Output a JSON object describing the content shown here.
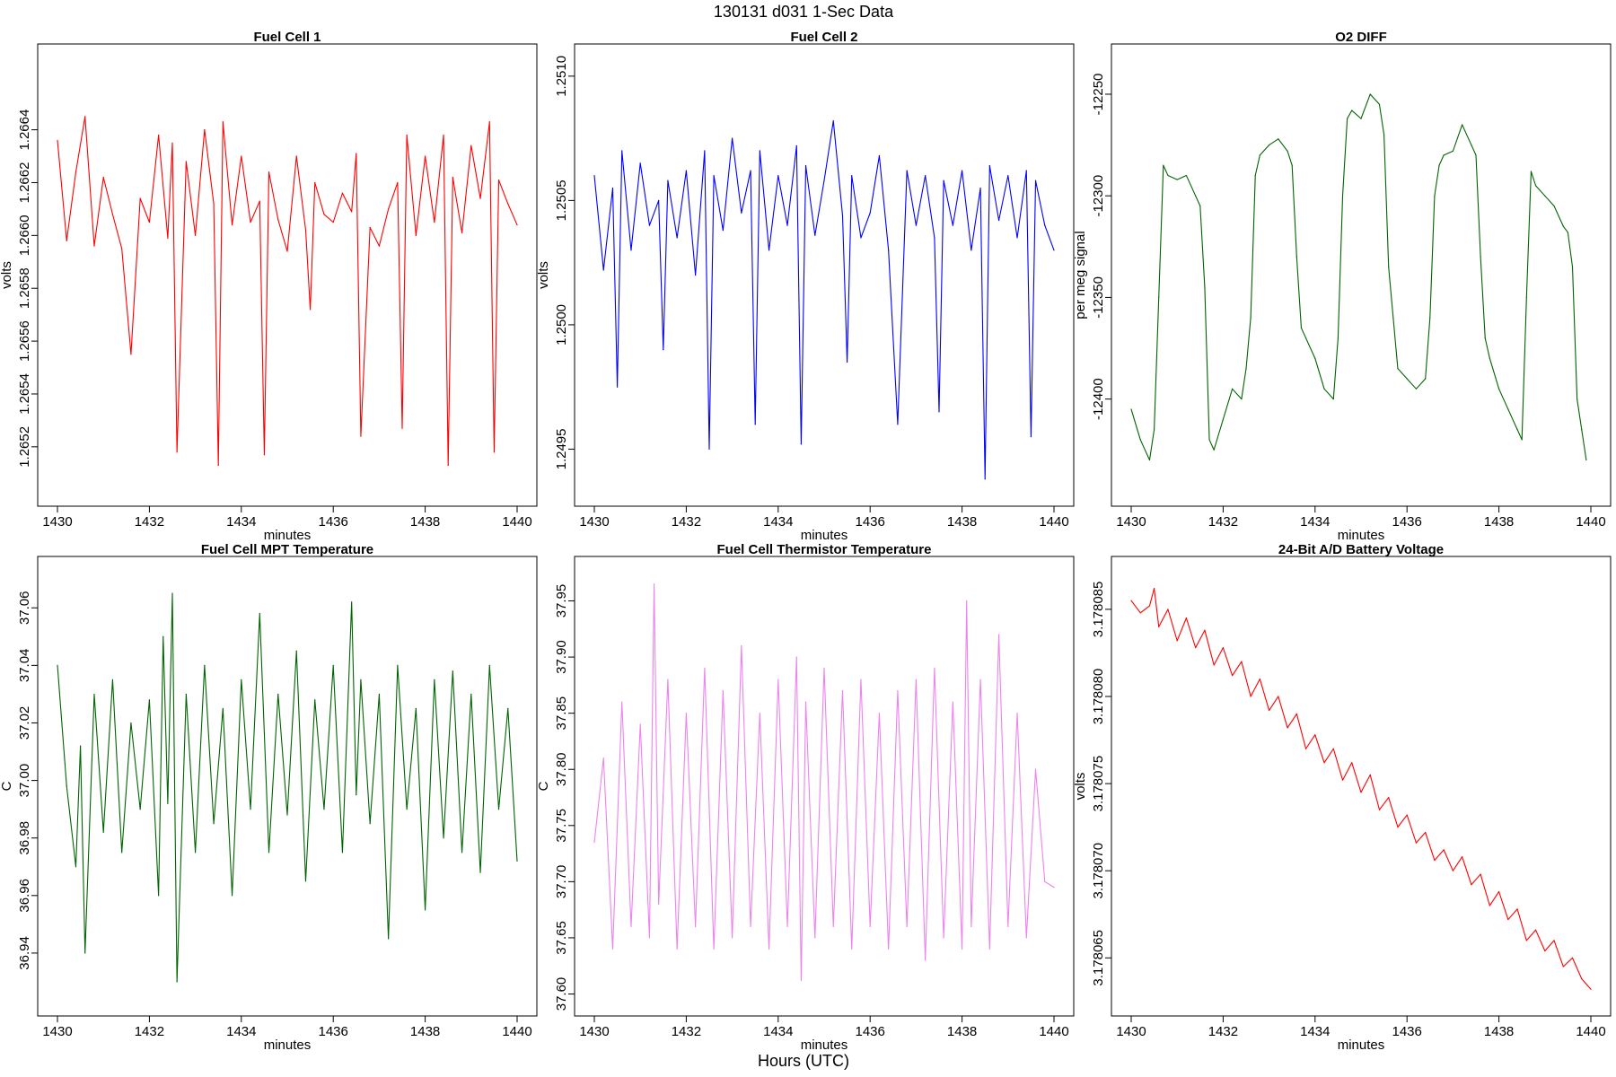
{
  "figure": {
    "suptitle": "130131   d031   1-Sec Data",
    "xlabel_common": "Hours (UTC)"
  },
  "chart_data": [
    {
      "type": "line",
      "title": "Fuel Cell 1",
      "xlabel": "minutes",
      "ylabel": "volts",
      "color": "#ff0000",
      "xlim": [
        1430,
        1440
      ],
      "ylim": [
        1.26505,
        1.26665
      ],
      "xticks": [
        1430,
        1432,
        1434,
        1436,
        1438,
        1440
      ],
      "xtick_labels": [
        "1430",
        "1432",
        "1434",
        "1436",
        "1438",
        "1440"
      ],
      "yticks": [
        1.2652,
        1.2654,
        1.2656,
        1.2658,
        1.266,
        1.2662,
        1.2664
      ],
      "ytick_labels": [
        "1.2652",
        "1.2654",
        "1.2656",
        "1.2658",
        "1.2660",
        "1.2662",
        "1.2664"
      ],
      "series": [
        {
          "x": [
            1430.0,
            1430.2,
            1430.4,
            1430.6,
            1430.8,
            1431.0,
            1431.2,
            1431.4,
            1431.6,
            1431.8,
            1432.0,
            1432.2,
            1432.4,
            1432.5,
            1432.6,
            1432.8,
            1433.0,
            1433.2,
            1433.4,
            1433.5,
            1433.6,
            1433.8,
            1434.0,
            1434.2,
            1434.4,
            1434.5,
            1434.6,
            1434.8,
            1435.0,
            1435.2,
            1435.4,
            1435.5,
            1435.6,
            1435.8,
            1436.0,
            1436.2,
            1436.4,
            1436.5,
            1436.6,
            1436.8,
            1437.0,
            1437.2,
            1437.4,
            1437.5,
            1437.6,
            1437.8,
            1438.0,
            1438.2,
            1438.4,
            1438.5,
            1438.6,
            1438.8,
            1439.0,
            1439.2,
            1439.4,
            1439.5,
            1439.6,
            1439.8,
            1440.0
          ],
          "y": [
            1.26636,
            1.26598,
            1.26624,
            1.26645,
            1.26596,
            1.26622,
            1.26608,
            1.26595,
            1.26555,
            1.26614,
            1.26605,
            1.26638,
            1.26599,
            1.26635,
            1.26518,
            1.26628,
            1.266,
            1.2664,
            1.26612,
            1.26513,
            1.26643,
            1.26604,
            1.2663,
            1.26605,
            1.26613,
            1.26517,
            1.26624,
            1.26606,
            1.26594,
            1.2663,
            1.26602,
            1.26572,
            1.2662,
            1.26608,
            1.26605,
            1.26616,
            1.26609,
            1.26631,
            1.26524,
            1.26603,
            1.26596,
            1.2661,
            1.2662,
            1.26527,
            1.26638,
            1.266,
            1.2663,
            1.26605,
            1.26638,
            1.26513,
            1.26622,
            1.26601,
            1.26634,
            1.26614,
            1.26643,
            1.26518,
            1.26621,
            1.26612,
            1.26604
          ]
        }
      ]
    },
    {
      "type": "line",
      "title": "Fuel Cell 2",
      "xlabel": "minutes",
      "ylabel": "volts",
      "color": "#0000ff",
      "xlim": [
        1430,
        1440
      ],
      "ylim": [
        1.24935,
        1.25105
      ],
      "xticks": [
        1430,
        1432,
        1434,
        1436,
        1438,
        1440
      ],
      "xtick_labels": [
        "1430",
        "1432",
        "1434",
        "1436",
        "1438",
        "1440"
      ],
      "yticks": [
        1.2495,
        1.25,
        1.2505,
        1.251
      ],
      "ytick_labels": [
        "1.2495",
        "1.2500",
        "1.2505",
        "1.2510"
      ],
      "series": [
        {
          "x": [
            1430.0,
            1430.2,
            1430.4,
            1430.5,
            1430.6,
            1430.8,
            1431.0,
            1431.2,
            1431.4,
            1431.5,
            1431.6,
            1431.8,
            1432.0,
            1432.2,
            1432.4,
            1432.5,
            1432.6,
            1432.8,
            1433.0,
            1433.2,
            1433.4,
            1433.5,
            1433.6,
            1433.8,
            1434.0,
            1434.2,
            1434.4,
            1434.5,
            1434.6,
            1434.8,
            1435.0,
            1435.2,
            1435.4,
            1435.5,
            1435.6,
            1435.8,
            1436.0,
            1436.2,
            1436.4,
            1436.6,
            1436.8,
            1437.0,
            1437.2,
            1437.4,
            1437.5,
            1437.6,
            1437.8,
            1438.0,
            1438.2,
            1438.4,
            1438.5,
            1438.6,
            1438.8,
            1439.0,
            1439.2,
            1439.4,
            1439.5,
            1439.6,
            1439.8,
            1440.0
          ],
          "y": [
            1.2506,
            1.25022,
            1.25055,
            1.24975,
            1.2507,
            1.2503,
            1.25065,
            1.2504,
            1.2505,
            1.2499,
            1.25058,
            1.25035,
            1.25062,
            1.2502,
            1.2507,
            1.2495,
            1.2506,
            1.25038,
            1.25075,
            1.25045,
            1.25062,
            1.2496,
            1.2507,
            1.2503,
            1.2506,
            1.2504,
            1.25072,
            1.24952,
            1.25064,
            1.25036,
            1.25058,
            1.25082,
            1.25044,
            1.24985,
            1.2506,
            1.25035,
            1.25045,
            1.25068,
            1.2503,
            1.2496,
            1.25062,
            1.2504,
            1.2506,
            1.25035,
            1.24965,
            1.25058,
            1.2504,
            1.25062,
            1.2503,
            1.25055,
            1.24938,
            1.25064,
            1.25042,
            1.2506,
            1.25035,
            1.25062,
            1.24955,
            1.25058,
            1.2504,
            1.2503
          ]
        }
      ]
    },
    {
      "type": "line",
      "title": "O2 DIFF",
      "xlabel": "minutes",
      "ylabel": "per meg signal",
      "color": "#006400",
      "xlim": [
        1430,
        1440
      ],
      "ylim": [
        -12443,
        -12235
      ],
      "xticks": [
        1430,
        1432,
        1434,
        1436,
        1438,
        1440
      ],
      "xtick_labels": [
        "1430",
        "1432",
        "1434",
        "1436",
        "1438",
        "1440"
      ],
      "yticks": [
        -12400,
        -12350,
        -12300,
        -12250
      ],
      "ytick_labels": [
        "-12400",
        "-12350",
        "-12300",
        "-12250"
      ],
      "series": [
        {
          "x": [
            1430.0,
            1430.2,
            1430.4,
            1430.5,
            1430.6,
            1430.7,
            1430.8,
            1431.0,
            1431.2,
            1431.4,
            1431.5,
            1431.6,
            1431.7,
            1431.8,
            1432.0,
            1432.2,
            1432.4,
            1432.5,
            1432.6,
            1432.7,
            1432.8,
            1433.0,
            1433.2,
            1433.4,
            1433.5,
            1433.6,
            1433.7,
            1433.8,
            1434.0,
            1434.2,
            1434.4,
            1434.5,
            1434.6,
            1434.7,
            1434.8,
            1435.0,
            1435.2,
            1435.4,
            1435.5,
            1435.6,
            1435.7,
            1435.8,
            1436.0,
            1436.2,
            1436.4,
            1436.5,
            1436.6,
            1436.7,
            1436.8,
            1437.0,
            1437.2,
            1437.4,
            1437.5,
            1437.6,
            1437.7,
            1437.8,
            1438.0,
            1438.2,
            1438.4,
            1438.5,
            1438.6,
            1438.7,
            1438.8,
            1439.0,
            1439.2,
            1439.4,
            1439.5,
            1439.6,
            1439.7,
            1439.8,
            1439.9
          ],
          "y": [
            -12405,
            -12420,
            -12430,
            -12415,
            -12350,
            -12285,
            -12290,
            -12292,
            -12290,
            -12300,
            -12305,
            -12345,
            -12420,
            -12425,
            -12410,
            -12395,
            -12400,
            -12385,
            -12360,
            -12290,
            -12280,
            -12275,
            -12272,
            -12278,
            -12285,
            -12330,
            -12365,
            -12370,
            -12380,
            -12395,
            -12400,
            -12370,
            -12300,
            -12262,
            -12258,
            -12262,
            -12250,
            -12255,
            -12270,
            -12335,
            -12360,
            -12385,
            -12390,
            -12395,
            -12390,
            -12360,
            -12300,
            -12285,
            -12280,
            -12278,
            -12265,
            -12275,
            -12280,
            -12330,
            -12370,
            -12380,
            -12395,
            -12405,
            -12415,
            -12420,
            -12350,
            -12288,
            -12295,
            -12300,
            -12305,
            -12315,
            -12318,
            -12335,
            -12400,
            -12415,
            -12430
          ]
        }
      ]
    },
    {
      "type": "line",
      "title": "Fuel Cell MPT Temperature",
      "xlabel": "minutes",
      "ylabel": "C",
      "color": "#006400",
      "xlim": [
        1430,
        1440
      ],
      "ylim": [
        36.925,
        37.071
      ],
      "xticks": [
        1430,
        1432,
        1434,
        1436,
        1438,
        1440
      ],
      "xtick_labels": [
        "1430",
        "1432",
        "1434",
        "1436",
        "1438",
        "1440"
      ],
      "yticks": [
        36.94,
        36.96,
        36.98,
        37.0,
        37.02,
        37.04,
        37.06
      ],
      "ytick_labels": [
        "36.94",
        "36.96",
        "36.98",
        "37.00",
        "37.02",
        "37.04",
        "37.06"
      ],
      "series": [
        {
          "x": [
            1430.0,
            1430.2,
            1430.4,
            1430.5,
            1430.6,
            1430.8,
            1431.0,
            1431.2,
            1431.4,
            1431.6,
            1431.8,
            1432.0,
            1432.2,
            1432.3,
            1432.4,
            1432.5,
            1432.6,
            1432.8,
            1433.0,
            1433.2,
            1433.4,
            1433.6,
            1433.8,
            1434.0,
            1434.2,
            1434.4,
            1434.6,
            1434.8,
            1435.0,
            1435.2,
            1435.4,
            1435.6,
            1435.8,
            1436.0,
            1436.2,
            1436.4,
            1436.5,
            1436.6,
            1436.8,
            1437.0,
            1437.2,
            1437.4,
            1437.6,
            1437.8,
            1438.0,
            1438.2,
            1438.4,
            1438.6,
            1438.8,
            1439.0,
            1439.2,
            1439.4,
            1439.6,
            1439.8,
            1440.0
          ],
          "y": [
            37.04,
            36.998,
            36.97,
            37.012,
            36.94,
            37.03,
            36.982,
            37.035,
            36.975,
            37.02,
            36.99,
            37.028,
            36.96,
            37.05,
            36.992,
            37.065,
            36.93,
            37.03,
            36.975,
            37.04,
            36.985,
            37.025,
            36.96,
            37.035,
            36.99,
            37.058,
            36.975,
            37.03,
            36.988,
            37.045,
            36.965,
            37.028,
            36.99,
            37.04,
            36.975,
            37.062,
            36.995,
            37.035,
            36.985,
            37.03,
            36.945,
            37.04,
            36.99,
            37.025,
            36.955,
            37.035,
            36.98,
            37.038,
            36.975,
            37.03,
            36.968,
            37.04,
            36.99,
            37.025,
            36.972
          ]
        }
      ]
    },
    {
      "type": "line",
      "title": "Fuel Cell Thermistor Temperature",
      "xlabel": "minutes",
      "ylabel": "C",
      "color": "#ee82ee",
      "xlim": [
        1430,
        1440
      ],
      "ylim": [
        37.598,
        37.972
      ],
      "xticks": [
        1430,
        1432,
        1434,
        1436,
        1438,
        1440
      ],
      "xtick_labels": [
        "1430",
        "1432",
        "1434",
        "1436",
        "1438",
        "1440"
      ],
      "yticks": [
        37.6,
        37.65,
        37.7,
        37.75,
        37.8,
        37.85,
        37.9,
        37.95
      ],
      "ytick_labels": [
        "37.60",
        "37.65",
        "37.70",
        "37.75",
        "37.80",
        "37.85",
        "37.90",
        "37.95"
      ],
      "series": [
        {
          "x": [
            1430.0,
            1430.2,
            1430.4,
            1430.6,
            1430.8,
            1431.0,
            1431.2,
            1431.3,
            1431.4,
            1431.6,
            1431.8,
            1432.0,
            1432.2,
            1432.4,
            1432.6,
            1432.8,
            1433.0,
            1433.2,
            1433.4,
            1433.6,
            1433.8,
            1434.0,
            1434.2,
            1434.4,
            1434.5,
            1434.6,
            1434.8,
            1435.0,
            1435.2,
            1435.4,
            1435.6,
            1435.8,
            1436.0,
            1436.2,
            1436.4,
            1436.6,
            1436.8,
            1437.0,
            1437.2,
            1437.4,
            1437.6,
            1437.8,
            1438.0,
            1438.1,
            1438.2,
            1438.4,
            1438.6,
            1438.8,
            1439.0,
            1439.2,
            1439.4,
            1439.6,
            1439.8,
            1440.0
          ],
          "y": [
            37.735,
            37.81,
            37.64,
            37.86,
            37.66,
            37.84,
            37.65,
            37.965,
            37.68,
            37.88,
            37.64,
            37.85,
            37.66,
            37.89,
            37.64,
            37.87,
            37.65,
            37.91,
            37.66,
            37.85,
            37.64,
            37.88,
            37.66,
            37.9,
            37.612,
            37.86,
            37.65,
            37.89,
            37.66,
            37.87,
            37.64,
            37.88,
            37.66,
            37.85,
            37.64,
            37.87,
            37.66,
            37.88,
            37.63,
            37.89,
            37.65,
            37.86,
            37.64,
            37.95,
            37.66,
            37.88,
            37.64,
            37.92,
            37.66,
            37.85,
            37.65,
            37.8,
            37.7,
            37.695
          ]
        }
      ]
    },
    {
      "type": "line",
      "title": "24-Bit A/D Battery Voltage",
      "xlabel": "minutes",
      "ylabel": "volts",
      "color": "#ff0000",
      "xlim": [
        1430,
        1440
      ],
      "ylim": [
        3.1780628,
        3.1780869
      ],
      "xticks": [
        1430,
        1432,
        1434,
        1436,
        1438,
        1440
      ],
      "xtick_labels": [
        "1430",
        "1432",
        "1434",
        "1436",
        "1438",
        "1440"
      ],
      "yticks": [
        3.178065,
        3.17807,
        3.178075,
        3.17808,
        3.178085
      ],
      "ytick_labels": [
        "3.178065",
        "3.178070",
        "3.178075",
        "3.178080",
        "3.178085"
      ],
      "series": [
        {
          "x": [
            1430.0,
            1430.2,
            1430.4,
            1430.5,
            1430.6,
            1430.8,
            1431.0,
            1431.2,
            1431.4,
            1431.6,
            1431.8,
            1432.0,
            1432.2,
            1432.4,
            1432.6,
            1432.8,
            1433.0,
            1433.2,
            1433.4,
            1433.6,
            1433.8,
            1434.0,
            1434.2,
            1434.4,
            1434.6,
            1434.8,
            1435.0,
            1435.2,
            1435.4,
            1435.6,
            1435.8,
            1436.0,
            1436.2,
            1436.4,
            1436.6,
            1436.8,
            1437.0,
            1437.2,
            1437.4,
            1437.6,
            1437.8,
            1438.0,
            1438.2,
            1438.4,
            1438.6,
            1438.8,
            1439.0,
            1439.2,
            1439.4,
            1439.6,
            1439.8,
            1440.0
          ],
          "y": [
            3.1780855,
            3.1780848,
            3.1780852,
            3.1780862,
            3.178084,
            3.178085,
            3.1780832,
            3.1780845,
            3.1780828,
            3.1780838,
            3.1780818,
            3.1780828,
            3.1780812,
            3.178082,
            3.17808,
            3.178081,
            3.1780792,
            3.17808,
            3.1780782,
            3.178079,
            3.178077,
            3.1780778,
            3.1780762,
            3.178077,
            3.1780752,
            3.1780762,
            3.1780745,
            3.1780755,
            3.1780735,
            3.1780742,
            3.1780725,
            3.1780732,
            3.1780716,
            3.1780722,
            3.1780706,
            3.1780712,
            3.17807,
            3.1780708,
            3.1780692,
            3.1780698,
            3.178068,
            3.1780688,
            3.1780672,
            3.1780678,
            3.178066,
            3.1780666,
            3.1780654,
            3.178066,
            3.1780645,
            3.178065,
            3.1780638,
            3.1780632
          ]
        }
      ]
    }
  ]
}
